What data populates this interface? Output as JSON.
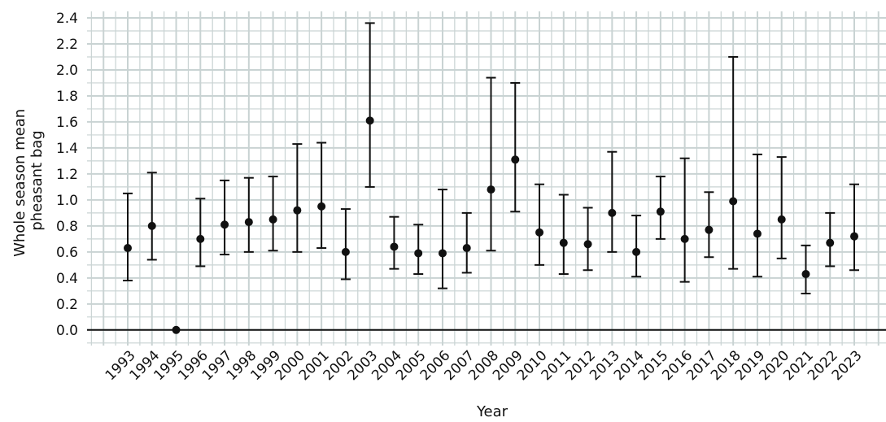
{
  "chart_data": {
    "type": "scatter",
    "xlabel": "Year",
    "ylabel": "Whole season mean pheasant bag",
    "ylim": [
      -0.12,
      2.45
    ],
    "yticks": [
      0.0,
      0.2,
      0.4,
      0.6,
      0.8,
      1.0,
      1.2,
      1.4,
      1.6,
      1.8,
      2.0,
      2.2,
      2.4
    ],
    "ytick_labels": [
      "0.0",
      "0.2",
      "0.4",
      "0.6",
      "0.8",
      "1.0",
      "1.2",
      "1.4",
      "1.6",
      "1.8",
      "2.0",
      "2.2",
      "2.4"
    ],
    "grid": true,
    "categories": [
      "1993",
      "1994",
      "1995",
      "1996",
      "1997",
      "1998",
      "1999",
      "2000",
      "2001",
      "2002",
      "2003",
      "2004",
      "2005",
      "2006",
      "2007",
      "2008",
      "2009",
      "2010",
      "2011",
      "2012",
      "2013",
      "2014",
      "2015",
      "2016",
      "2017",
      "2018",
      "2019",
      "2020",
      "2021",
      "2022",
      "2023"
    ],
    "values": [
      0.63,
      0.8,
      0.0,
      0.7,
      0.81,
      0.83,
      0.85,
      0.92,
      0.95,
      0.6,
      1.61,
      0.64,
      0.59,
      0.59,
      0.63,
      1.08,
      1.31,
      0.75,
      0.67,
      0.66,
      0.9,
      0.6,
      0.91,
      0.7,
      0.77,
      0.99,
      0.74,
      0.85,
      0.43,
      0.67,
      0.72
    ],
    "lower": [
      0.38,
      0.54,
      null,
      0.49,
      0.58,
      0.6,
      0.61,
      0.6,
      0.63,
      0.39,
      1.1,
      0.47,
      0.43,
      0.32,
      0.44,
      0.61,
      0.91,
      0.5,
      0.43,
      0.46,
      0.6,
      0.41,
      0.7,
      0.37,
      0.56,
      0.47,
      0.41,
      0.55,
      0.28,
      0.49,
      0.46
    ],
    "upper": [
      1.05,
      1.21,
      null,
      1.01,
      1.15,
      1.17,
      1.18,
      1.43,
      1.44,
      0.93,
      2.36,
      0.87,
      0.81,
      1.08,
      0.9,
      1.94,
      1.9,
      1.12,
      1.04,
      0.94,
      1.37,
      0.88,
      1.18,
      1.32,
      1.06,
      2.1,
      1.35,
      1.33,
      0.65,
      0.9,
      1.12
    ],
    "colors": {
      "background": "#ffffff",
      "grid": "#c9d3d3",
      "marker": "#111111",
      "zeroline": "#111111"
    }
  }
}
